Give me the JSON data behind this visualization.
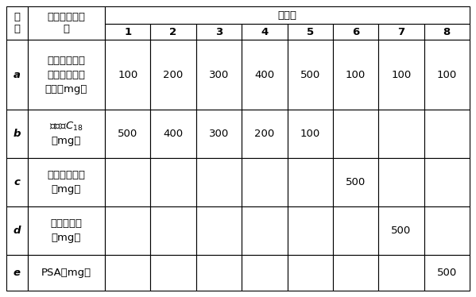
{
  "title_seq": "序\n号",
  "title_comp_lines": [
    "组分及制备参",
    "数"
  ],
  "title_shishi": "实施例",
  "col_headers": [
    "1",
    "2",
    "3",
    "4",
    "5",
    "6",
    "7",
    "8"
  ],
  "rows": [
    {
      "seq": "a",
      "comp_lines": [
        "酚类环境雌激",
        "素分子印迹聚",
        "合物（mg）"
      ],
      "values": [
        "100",
        "200",
        "300",
        "400",
        "500",
        "100",
        "100",
        "100"
      ]
    },
    {
      "seq": "b",
      "comp_lines": [
        "粉末状C₁₈",
        "（mg）"
      ],
      "values": [
        "500",
        "400",
        "300",
        "200",
        "100",
        "",
        "",
        ""
      ]
    },
    {
      "seq": "c",
      "comp_lines": [
        "改性二氧化硅",
        "（mg）"
      ],
      "values": [
        "",
        "",
        "",
        "",
        "",
        "500",
        "",
        ""
      ]
    },
    {
      "seq": "d",
      "comp_lines": [
        "三氧化二铝",
        "（mg）"
      ],
      "values": [
        "",
        "",
        "",
        "",
        "",
        "",
        "500",
        ""
      ]
    },
    {
      "seq": "e",
      "comp_lines": [
        "PSA（mg）"
      ],
      "values": [
        "",
        "",
        "",
        "",
        "",
        "",
        "",
        "500"
      ]
    }
  ],
  "bg_color": "#ffffff",
  "border_color": "#000000",
  "text_color": "#000000",
  "lw": 0.8
}
